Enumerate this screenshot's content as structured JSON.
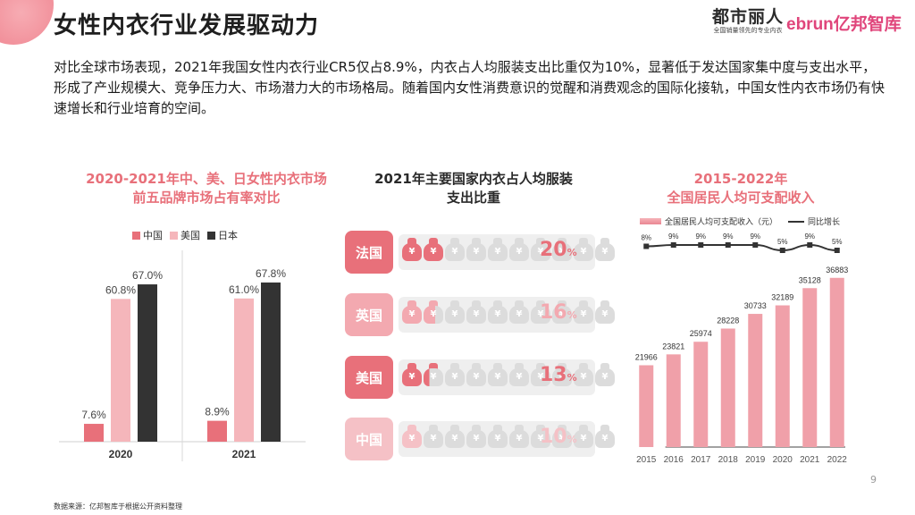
{
  "page": {
    "title": "女性内衣行业发展驱动力",
    "intro": "对比全球市场表现，2021年我国女性内衣行业CR5仅占8.9%，内衣占人均服装支出比重仅为10%，显著低于发达国家集中度与支出水平，形成了产业规模大、竞争压力大、市场潜力大的市场格局。随着国内女性消费意识的觉醒和消费观念的国际化接轨，中国女性内衣市场仍有快速增长和行业培育的空间。",
    "page_number": "9",
    "source": "数据来源：亿邦智库于根据公开资料整理"
  },
  "logos": {
    "dushi_name": "都市丽人",
    "dushi_tagline": "全国销量领先的专业内衣",
    "ebrun": "ebrun亿邦智库"
  },
  "colors": {
    "accent_pink": "#e8707a",
    "china": "#e8707a",
    "usa": "#f5b6bb",
    "japan": "#333333",
    "income_bar": "#f0a0a9",
    "growth_line": "#333333",
    "bag_inactive": "#dcdcdc"
  },
  "chart_data": [
    {
      "type": "bar",
      "title": "2020-2021年中、美、日女性内衣市场前五品牌市场占有率对比",
      "title_line1": "2020-2021年中、美、日女性内衣市场",
      "title_line2": "前五品牌市场占有率对比",
      "categories": [
        "2020",
        "2021"
      ],
      "series": [
        {
          "name": "中国",
          "values": [
            7.6,
            8.9
          ],
          "labels": [
            "7.6%",
            "8.9%"
          ]
        },
        {
          "name": "美国",
          "values": [
            60.8,
            61.0
          ],
          "labels": [
            "60.8%",
            "61.0%"
          ]
        },
        {
          "name": "日本",
          "values": [
            67.0,
            67.8
          ],
          "labels": [
            "67.0%",
            "67.8%"
          ]
        }
      ],
      "ylim": [
        0,
        80
      ],
      "grid": false,
      "legend_position": "top"
    },
    {
      "type": "pictograph",
      "title": "2021年主要国家内衣占人均服装支出比重",
      "title_line1": "2021年主要国家内衣占人均服装",
      "title_line2": "支出比重",
      "bag_symbol": "¥",
      "unit": "%",
      "categories": [
        "法国",
        "英国",
        "美国",
        "中国"
      ],
      "values": [
        20,
        16,
        13,
        10
      ],
      "value_labels": [
        "20",
        "16",
        "13",
        "10"
      ],
      "icons_total": 10,
      "highlight": "中国"
    },
    {
      "type": "bar+line",
      "title": "2015-2022年全国居民人均可支配收入",
      "title_line1": "2015-2022年",
      "title_line2": "全国居民人均可支配收入",
      "categories": [
        "2015",
        "2016",
        "2017",
        "2018",
        "2019",
        "2020",
        "2021",
        "2022"
      ],
      "series": [
        {
          "name": "全国居民人均可支配收入（元）",
          "type": "bar",
          "values": [
            21966,
            23821,
            25974,
            28228,
            30733,
            32189,
            35128,
            36883
          ]
        },
        {
          "name": "同比增长",
          "type": "line",
          "values": [
            8,
            9,
            9,
            9,
            9,
            5,
            9,
            5
          ],
          "labels": [
            "8%",
            "9%",
            "9%",
            "9%",
            "9%",
            "5%",
            "9%",
            "5%"
          ]
        }
      ],
      "ylim": [
        0,
        40000
      ],
      "grid": false,
      "legend_position": "top"
    }
  ]
}
